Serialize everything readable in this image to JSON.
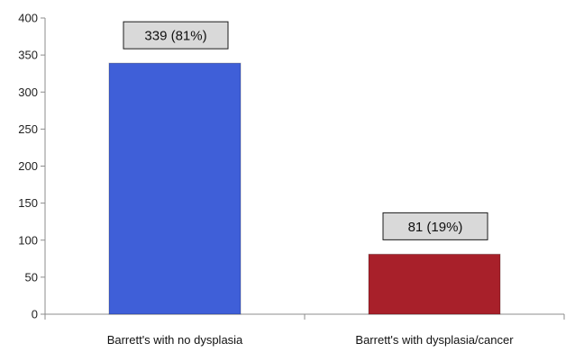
{
  "chart_data": {
    "type": "bar",
    "categories": [
      "Barrett's with no dysplasia",
      "Barrett's with dysplasia/cancer"
    ],
    "values": [
      339,
      81
    ],
    "data_labels": [
      "339 (81%)",
      "81 (19%)"
    ],
    "bar_colors": [
      "#3f5fd8",
      "#a8202a"
    ],
    "ylim": [
      0,
      400
    ],
    "yticks": [
      0,
      50,
      100,
      150,
      200,
      250,
      300,
      350,
      400
    ],
    "title": "",
    "xlabel": "",
    "ylabel": "",
    "grid": false,
    "legend": "none"
  }
}
